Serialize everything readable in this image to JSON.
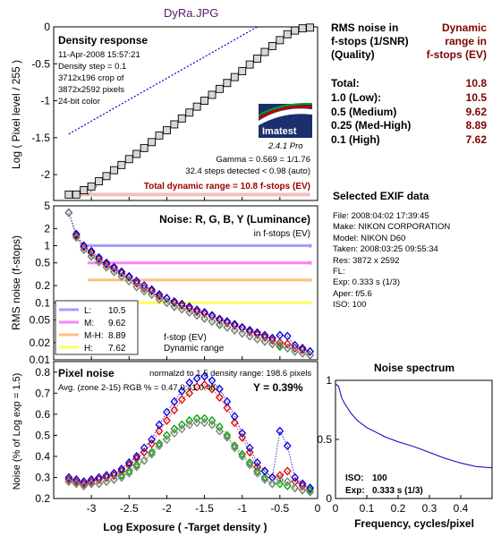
{
  "window_title": "DyRa.JPG",
  "colors": {
    "title": "#5a1a6e",
    "dark_red": "#800000",
    "total_red": "#a00000",
    "red": "#e00000",
    "green": "#00a000",
    "blue": "#0000e0",
    "gray": "#808080"
  },
  "density_panel": {
    "heading": "Density response",
    "info_lines": [
      "11-Apr-2008 15:57:21",
      "Density step = 0.1",
      "3712x196 crop of",
      "3872x2592 pixels",
      "24-bit color"
    ],
    "gamma_line": "Gamma = 0.569 = 1/1.76",
    "steps_line": "32.4 steps detected < 0.98 (auto)",
    "total_line": "Total dynamic range = 10.8 f-stops (EV)",
    "ylabel": "Log ( Pixel level / 255 )",
    "logo_text": "Imatest",
    "version_text": "2.4.1  Pro"
  },
  "noise_panel": {
    "heading": "Noise: R, G, B, Y (Luminance)",
    "subheading": "in f-stops (EV)",
    "ylabel": "RMS noise (f-stops)",
    "legend": [
      {
        "label": "L:",
        "value": "10.5",
        "color": "#a0a0ff"
      },
      {
        "label": "M:",
        "value": "9.62",
        "color": "#ff80ff"
      },
      {
        "label": "M-H:",
        "value": "8.89",
        "color": "#ffc080"
      },
      {
        "label": "H:",
        "value": "7.62",
        "color": "#ffff60"
      }
    ],
    "annotation": [
      "f-stop (EV)",
      "Dynamic range"
    ]
  },
  "pixel_panel": {
    "heading": "Pixel noise",
    "norm_line": "normalzd to 1.5 density range: 198.6 pixels",
    "avg_line": "Avg. (zone 2-15) RGB % = 0.47  0.41  0.48;",
    "y_line": "Y = 0.39%",
    "ylabel": "Noise (% of Log exp = 1.5)",
    "xlabel": "Log Exposure ( -Target density )"
  },
  "rms_table": {
    "col1_header": [
      "RMS noise in",
      "f-stops (1/SNR)",
      "(Quality)"
    ],
    "col2_header": [
      "Dynamic",
      "range in",
      "f-stops (EV)"
    ],
    "rows": [
      {
        "label": "Total:",
        "value": "10.8"
      },
      {
        "label": "1.0    (Low):",
        "value": "10.5"
      },
      {
        "label": "0.5    (Medium)",
        "value": "9.62"
      },
      {
        "label": "0.25 (Med-High)",
        "value": "8.89"
      },
      {
        "label": "0.1    (High)",
        "value": "7.62"
      }
    ]
  },
  "exif": {
    "title": "Selected EXIF data",
    "lines": [
      "File:  2008:04:02 17:39:45",
      "Make:  NIKON CORPORATION",
      "Model:  NIKON D60",
      "Taken:  2008:03:25 09:55:34",
      "Res:   3872 x 2592",
      "FL:",
      "Exp:   0.333 s  (1/3)",
      "Aper:  f/5.6",
      "ISO:   100"
    ]
  },
  "spectrum": {
    "title": "Noise spectrum",
    "xlabel": "Frequency, cycles/pixel",
    "iso_label": "ISO:",
    "iso_value": "100",
    "exp_label": "Exp:",
    "exp_value": "0.333 s   (1/3)"
  },
  "chart_data": [
    {
      "type": "line",
      "name": "Density response",
      "x": [
        -3.3,
        -3.2,
        -3.1,
        -3.0,
        -2.9,
        -2.8,
        -2.7,
        -2.6,
        -2.5,
        -2.4,
        -2.3,
        -2.2,
        -2.1,
        -2.0,
        -1.9,
        -1.8,
        -1.7,
        -1.6,
        -1.5,
        -1.4,
        -1.3,
        -1.2,
        -1.1,
        -1.0,
        -0.9,
        -0.8,
        -0.7,
        -0.6,
        -0.5,
        -0.4,
        -0.3,
        -0.2,
        -0.1
      ],
      "y": [
        -2.27,
        -2.27,
        -2.21,
        -2.16,
        -2.09,
        -2.02,
        -1.94,
        -1.87,
        -1.79,
        -1.72,
        -1.64,
        -1.56,
        -1.47,
        -1.4,
        -1.32,
        -1.24,
        -1.16,
        -1.08,
        -1.0,
        -0.92,
        -0.84,
        -0.76,
        -0.68,
        -0.6,
        -0.51,
        -0.43,
        -0.34,
        -0.26,
        -0.18,
        -0.1,
        -0.05,
        -0.02,
        -0.01
      ],
      "xlim": [
        -3.5,
        0
      ],
      "ylim": [
        -2.35,
        0
      ],
      "yticks": [
        0,
        -0.5,
        -1,
        -1.5,
        -2
      ]
    },
    {
      "type": "scatter",
      "name": "RMS noise (f-stops)",
      "log_y": true,
      "xlim": [
        -3.5,
        0
      ],
      "ylim": [
        0.01,
        5
      ],
      "yticks": [
        "5",
        "2",
        "1",
        "0.5",
        "0.2",
        "0.1",
        "0.05",
        "0.02",
        "0.01"
      ],
      "x": [
        -3.3,
        -3.2,
        -3.1,
        -3.0,
        -2.9,
        -2.8,
        -2.7,
        -2.6,
        -2.5,
        -2.4,
        -2.3,
        -2.2,
        -2.1,
        -2.0,
        -1.9,
        -1.8,
        -1.7,
        -1.6,
        -1.5,
        -1.4,
        -1.3,
        -1.2,
        -1.1,
        -1.0,
        -0.9,
        -0.8,
        -0.7,
        -0.6,
        -0.5,
        -0.4,
        -0.3,
        -0.2,
        -0.1
      ],
      "series": [
        {
          "name": "R",
          "color": "#e00000",
          "values": [
            3.8,
            1.5,
            0.95,
            0.75,
            0.58,
            0.47,
            0.4,
            0.33,
            0.28,
            0.22,
            0.18,
            0.16,
            0.13,
            0.12,
            0.1,
            0.09,
            0.08,
            0.07,
            0.065,
            0.058,
            0.05,
            0.045,
            0.04,
            0.036,
            0.031,
            0.028,
            0.025,
            0.022,
            0.02,
            0.019,
            0.016,
            0.015,
            0.014
          ]
        },
        {
          "name": "G",
          "color": "#00a000",
          "values": [
            3.8,
            1.4,
            0.85,
            0.65,
            0.52,
            0.42,
            0.35,
            0.29,
            0.24,
            0.19,
            0.16,
            0.14,
            0.115,
            0.1,
            0.085,
            0.077,
            0.068,
            0.06,
            0.053,
            0.047,
            0.041,
            0.037,
            0.033,
            0.029,
            0.026,
            0.023,
            0.021,
            0.019,
            0.017,
            0.016,
            0.014,
            0.013,
            0.012
          ]
        },
        {
          "name": "B",
          "color": "#0000e0",
          "values": [
            3.8,
            1.6,
            1.0,
            0.8,
            0.62,
            0.5,
            0.42,
            0.35,
            0.29,
            0.24,
            0.2,
            0.17,
            0.14,
            0.12,
            0.105,
            0.095,
            0.085,
            0.075,
            0.068,
            0.06,
            0.052,
            0.047,
            0.042,
            0.037,
            0.033,
            0.03,
            0.027,
            0.024,
            0.027,
            0.026,
            0.018,
            0.016,
            0.014
          ]
        },
        {
          "name": "Y",
          "color": "#808080",
          "values": [
            3.8,
            1.4,
            0.85,
            0.66,
            0.52,
            0.42,
            0.35,
            0.29,
            0.24,
            0.19,
            0.16,
            0.14,
            0.115,
            0.1,
            0.086,
            0.077,
            0.068,
            0.06,
            0.053,
            0.047,
            0.042,
            0.037,
            0.033,
            0.029,
            0.026,
            0.023,
            0.021,
            0.019,
            0.018,
            0.016,
            0.014,
            0.013,
            0.012
          ]
        }
      ],
      "thresholds": [
        1.0,
        0.5,
        0.25,
        0.1
      ]
    },
    {
      "type": "scatter",
      "name": "Pixel noise",
      "xlabel": "Log Exposure ( -Target density )",
      "ylabel": "Noise (% of Log exp = 1.5)",
      "xlim": [
        -3.5,
        0
      ],
      "ylim": [
        0.2,
        0.85
      ],
      "xticks": [
        -3,
        -2.5,
        -2,
        -1.5,
        -1,
        -0.5,
        0
      ],
      "yticks": [
        0.8,
        0.7,
        0.6,
        0.5,
        0.4,
        0.3,
        0.2
      ],
      "x": [
        -3.3,
        -3.2,
        -3.1,
        -3.0,
        -2.9,
        -2.8,
        -2.7,
        -2.6,
        -2.5,
        -2.4,
        -2.3,
        -2.2,
        -2.1,
        -2.0,
        -1.9,
        -1.8,
        -1.7,
        -1.6,
        -1.5,
        -1.4,
        -1.3,
        -1.2,
        -1.1,
        -1.0,
        -0.9,
        -0.8,
        -0.7,
        -0.6,
        -0.5,
        -0.4,
        -0.3,
        -0.2,
        -0.1
      ],
      "series": [
        {
          "name": "R",
          "color": "#e00000",
          "values": [
            0.29,
            0.28,
            0.27,
            0.28,
            0.29,
            0.3,
            0.31,
            0.33,
            0.36,
            0.39,
            0.42,
            0.46,
            0.52,
            0.57,
            0.62,
            0.67,
            0.7,
            0.73,
            0.74,
            0.72,
            0.68,
            0.63,
            0.56,
            0.49,
            0.42,
            0.35,
            0.33,
            0.3,
            0.31,
            0.33,
            0.28,
            0.26,
            0.25
          ]
        },
        {
          "name": "G",
          "color": "#00a000",
          "values": [
            0.28,
            0.27,
            0.26,
            0.27,
            0.27,
            0.28,
            0.29,
            0.31,
            0.33,
            0.36,
            0.38,
            0.42,
            0.46,
            0.5,
            0.53,
            0.55,
            0.57,
            0.58,
            0.58,
            0.57,
            0.54,
            0.5,
            0.45,
            0.41,
            0.37,
            0.33,
            0.3,
            0.27,
            0.27,
            0.26,
            0.25,
            0.24,
            0.24
          ]
        },
        {
          "name": "B",
          "color": "#0000e0",
          "values": [
            0.3,
            0.29,
            0.28,
            0.29,
            0.3,
            0.31,
            0.32,
            0.34,
            0.37,
            0.4,
            0.44,
            0.48,
            0.55,
            0.61,
            0.66,
            0.71,
            0.75,
            0.77,
            0.78,
            0.76,
            0.72,
            0.66,
            0.59,
            0.51,
            0.44,
            0.37,
            0.33,
            0.3,
            0.52,
            0.45,
            0.3,
            0.27,
            0.25
          ]
        },
        {
          "name": "Y",
          "color": "#808080",
          "values": [
            0.28,
            0.27,
            0.26,
            0.27,
            0.27,
            0.28,
            0.29,
            0.3,
            0.32,
            0.35,
            0.38,
            0.41,
            0.45,
            0.48,
            0.51,
            0.53,
            0.55,
            0.56,
            0.56,
            0.55,
            0.52,
            0.49,
            0.44,
            0.4,
            0.36,
            0.32,
            0.29,
            0.27,
            0.29,
            0.28,
            0.25,
            0.24,
            0.23
          ]
        }
      ]
    },
    {
      "type": "line",
      "name": "Noise spectrum",
      "xlabel": "Frequency, cycles/pixel",
      "xlim": [
        0,
        0.5
      ],
      "ylim": [
        0,
        1
      ],
      "xticks": [
        0,
        0.1,
        0.2,
        0.3,
        0.4
      ],
      "yticks": [
        1,
        0.5,
        0
      ],
      "x": [
        0,
        0.01,
        0.02,
        0.03,
        0.05,
        0.07,
        0.1,
        0.13,
        0.16,
        0.2,
        0.25,
        0.3,
        0.35,
        0.4,
        0.45,
        0.5
      ],
      "y": [
        0.97,
        0.95,
        0.85,
        0.8,
        0.72,
        0.66,
        0.6,
        0.56,
        0.52,
        0.48,
        0.44,
        0.39,
        0.34,
        0.3,
        0.27,
        0.26
      ]
    }
  ]
}
